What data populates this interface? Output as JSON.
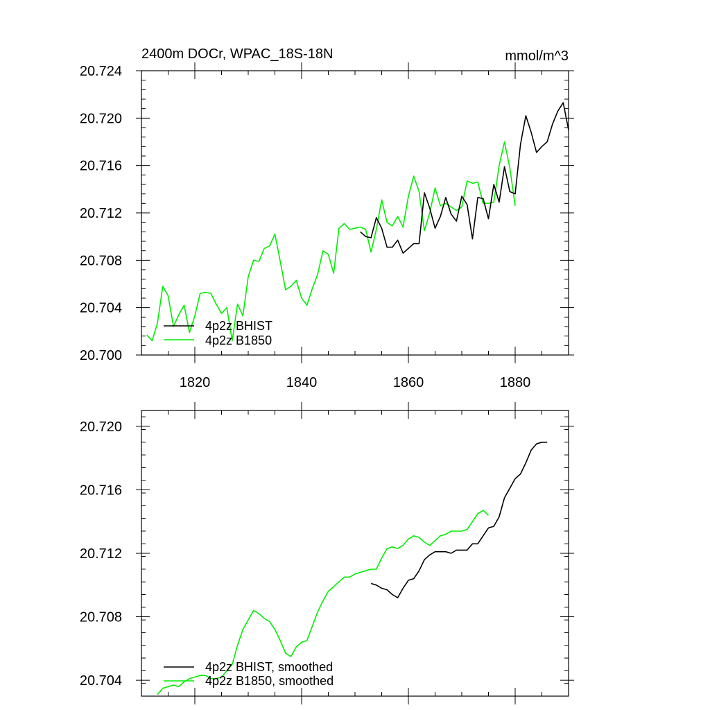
{
  "colors": {
    "bhist": "#000000",
    "b1850": "#00ee00",
    "axis": "#000000",
    "background": "#ffffff"
  },
  "chart_data": [
    {
      "type": "line",
      "title": "2400m DOCr, WPAC_18S-18N",
      "units": "mmol/m^3",
      "xlim": [
        1810,
        1890
      ],
      "ylim": [
        20.7,
        20.724
      ],
      "xticks": [
        1820,
        1840,
        1860,
        1880
      ],
      "xtick_labels": [
        "1820",
        "1840",
        "1860",
        "1880"
      ],
      "yticks": [
        20.7,
        20.704,
        20.708,
        20.712,
        20.716,
        20.72,
        20.724
      ],
      "ytick_labels": [
        "20.700",
        "20.704",
        "20.708",
        "20.712",
        "20.716",
        "20.720",
        "20.724"
      ],
      "series": [
        {
          "name": "4p2z BHIST",
          "color": "#000000",
          "x_start": 1851,
          "values": [
            20.7104,
            20.71,
            20.7099,
            20.7116,
            20.7107,
            20.7091,
            20.7091,
            20.7097,
            20.7086,
            20.709,
            20.7094,
            20.7094,
            20.7137,
            20.7124,
            20.7107,
            20.7117,
            20.7133,
            20.7119,
            20.7113,
            20.7134,
            20.7127,
            20.7098,
            20.7133,
            20.7132,
            20.7115,
            20.7144,
            20.7129,
            20.7159,
            20.7138,
            20.7136,
            20.7178,
            20.7202,
            20.7188,
            20.7171,
            20.7176,
            20.718,
            20.7195,
            20.7206,
            20.7213,
            20.719
          ]
        },
        {
          "name": "4p2z B1850",
          "color": "#00ee00",
          "x_start": 1811,
          "values": [
            20.7017,
            20.7012,
            20.7027,
            20.7058,
            20.705,
            20.7024,
            20.7034,
            20.7042,
            20.7019,
            20.7033,
            20.7052,
            20.7053,
            20.7052,
            20.7043,
            20.7035,
            20.704,
            20.7012,
            20.7043,
            20.7033,
            20.7066,
            20.708,
            20.7079,
            20.709,
            20.7092,
            20.7102,
            20.7079,
            20.7055,
            20.7058,
            20.7063,
            20.7048,
            20.7042,
            20.7056,
            20.7068,
            20.7088,
            20.7085,
            20.7069,
            20.7107,
            20.7111,
            20.7106,
            20.7107,
            20.7108,
            20.7106,
            20.7087,
            20.7106,
            20.7131,
            20.7112,
            20.7109,
            20.7117,
            20.7108,
            20.7134,
            20.7151,
            20.7138,
            20.7105,
            20.712,
            20.7141,
            20.7126,
            20.7128,
            20.7125,
            20.7122,
            20.7125,
            20.7147,
            20.7145,
            20.7146,
            20.7128,
            20.7128,
            20.7129,
            20.716,
            20.718,
            20.7158,
            20.7126
          ]
        }
      ],
      "legend": {
        "placement": "bottom-left",
        "entries": [
          "4p2z BHIST",
          "4p2z B1850"
        ]
      }
    },
    {
      "type": "line",
      "title": "",
      "xlim": [
        1810,
        1890
      ],
      "ylim": [
        20.703,
        20.721
      ],
      "xticks": [
        1820,
        1840,
        1860,
        1880
      ],
      "yticks": [
        20.704,
        20.708,
        20.712,
        20.716,
        20.72
      ],
      "ytick_labels": [
        "20.704",
        "20.708",
        "20.712",
        "20.716",
        "20.720"
      ],
      "series": [
        {
          "name": "4p2z BHIST, smoothed",
          "color": "#000000",
          "x_start": 1853,
          "values": [
            20.7101,
            20.71,
            20.7098,
            20.7097,
            20.7094,
            20.7092,
            20.7098,
            20.7103,
            20.7104,
            20.7109,
            20.7116,
            20.7119,
            20.7121,
            20.7121,
            20.7121,
            20.712,
            20.7122,
            20.7122,
            20.7122,
            20.7126,
            20.7126,
            20.7131,
            20.7136,
            20.7137,
            20.7143,
            20.7155,
            20.7161,
            20.7167,
            20.717,
            20.7177,
            20.7185,
            20.7189,
            20.719,
            20.719
          ]
        },
        {
          "name": "4p2z B1850, smoothed",
          "color": "#00ee00",
          "x_start": 1813,
          "values": [
            20.7031,
            20.7035,
            20.7036,
            20.7037,
            20.7036,
            20.7039,
            20.7041,
            20.7042,
            20.7043,
            20.7043,
            20.7041,
            20.7041,
            20.7042,
            20.7046,
            20.705,
            20.7062,
            20.7072,
            20.7078,
            20.7084,
            20.7082,
            20.7079,
            20.7077,
            20.7072,
            20.7065,
            20.7057,
            20.7055,
            20.7061,
            20.7064,
            20.7065,
            20.7074,
            20.7083,
            20.709,
            20.7096,
            20.7099,
            20.7102,
            20.7105,
            20.7105,
            20.7107,
            20.7108,
            20.7109,
            20.711,
            20.711,
            20.7117,
            20.7123,
            20.7124,
            20.7123,
            20.7125,
            20.7129,
            20.7131,
            20.713,
            20.7127,
            20.7125,
            20.7128,
            20.7131,
            20.7132,
            20.7134,
            20.7134,
            20.7134,
            20.7135,
            20.714,
            20.7145,
            20.7147,
            20.7144
          ]
        }
      ],
      "legend": {
        "placement": "bottom-left",
        "entries": [
          "4p2z BHIST, smoothed",
          "4p2z B1850, smoothed"
        ]
      }
    }
  ]
}
